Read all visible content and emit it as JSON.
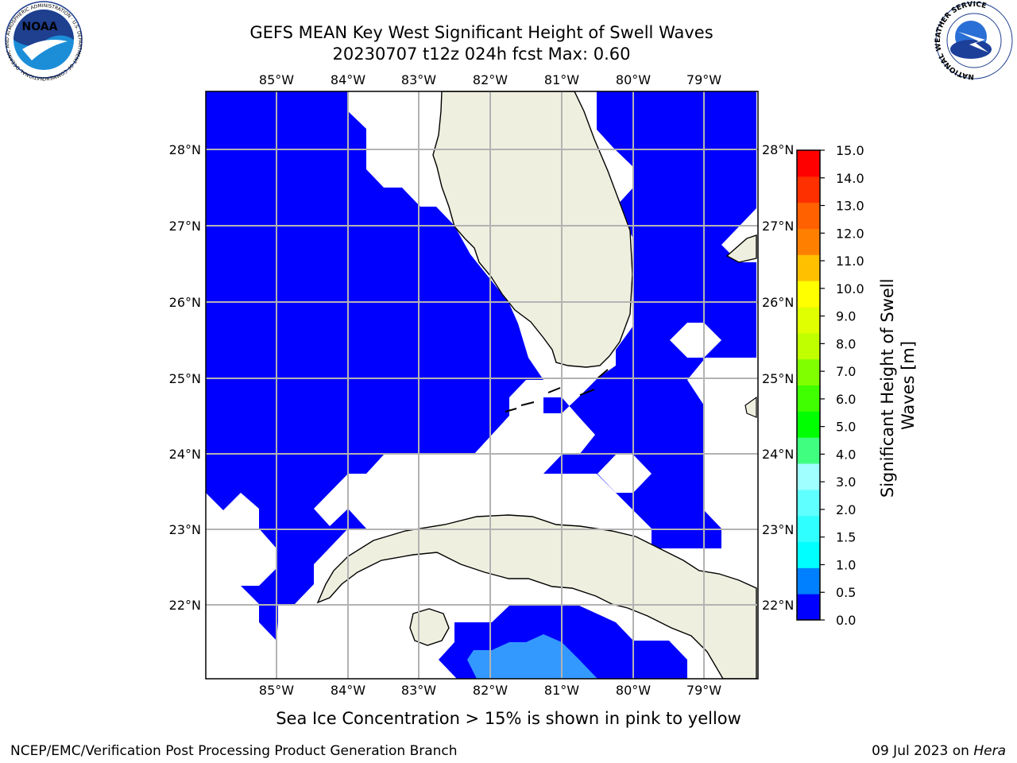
{
  "header": {
    "title_line1": "GEFS MEAN Key West Significant Height of Swell Waves",
    "title_line2": "20230707 t12z 024h fcst   Max: 0.60"
  },
  "logos": {
    "noaa_text": "NOAA",
    "noaa_ring_text": "NATIONAL OCEANIC AND ATMOSPHERIC ADMINISTRATION · U.S. DEPARTMENT OF COMMERCE",
    "nws_ring_text": "NATIONAL WEATHER SERVICE"
  },
  "map": {
    "lon_labels": [
      "85°W",
      "84°W",
      "83°W",
      "82°W",
      "81°W",
      "80°W",
      "79°W"
    ],
    "lat_labels": [
      "28°N",
      "27°N",
      "26°N",
      "25°N",
      "24°N",
      "23°N",
      "22°N"
    ],
    "colors": {
      "ocean_low": "#0000ff",
      "ocean_mid": "#3399ff",
      "land": "#efefdf",
      "grid": "#b3b3b3",
      "no_data": "#ffffff"
    }
  },
  "colorbar": {
    "label": "Significant Height of Swell Waves [m]",
    "ticks": [
      "0.0",
      "0.5",
      "1.0",
      "1.5",
      "2.0",
      "3.0",
      "4.0",
      "5.0",
      "6.0",
      "7.0",
      "8.0",
      "9.0",
      "10.0",
      "11.0",
      "12.0",
      "13.0",
      "14.0",
      "15.0"
    ],
    "colors": [
      "#0000ff",
      "#0080ff",
      "#00ffff",
      "#30ffff",
      "#60ffff",
      "#a0ffff",
      "#40ff80",
      "#00ff00",
      "#40ff00",
      "#80ff00",
      "#c0ff00",
      "#e0ff00",
      "#ffff00",
      "#ffc000",
      "#ff8000",
      "#ff6000",
      "#ff3000",
      "#ff0000"
    ]
  },
  "footer": {
    "ice_note": "Sea Ice Concentration > 15% is shown in pink to yellow",
    "branch": "NCEP/EMC/Verification Post Processing Product Generation Branch",
    "date_prefix": "09 Jul 2023 on ",
    "date_host": "Hera"
  }
}
